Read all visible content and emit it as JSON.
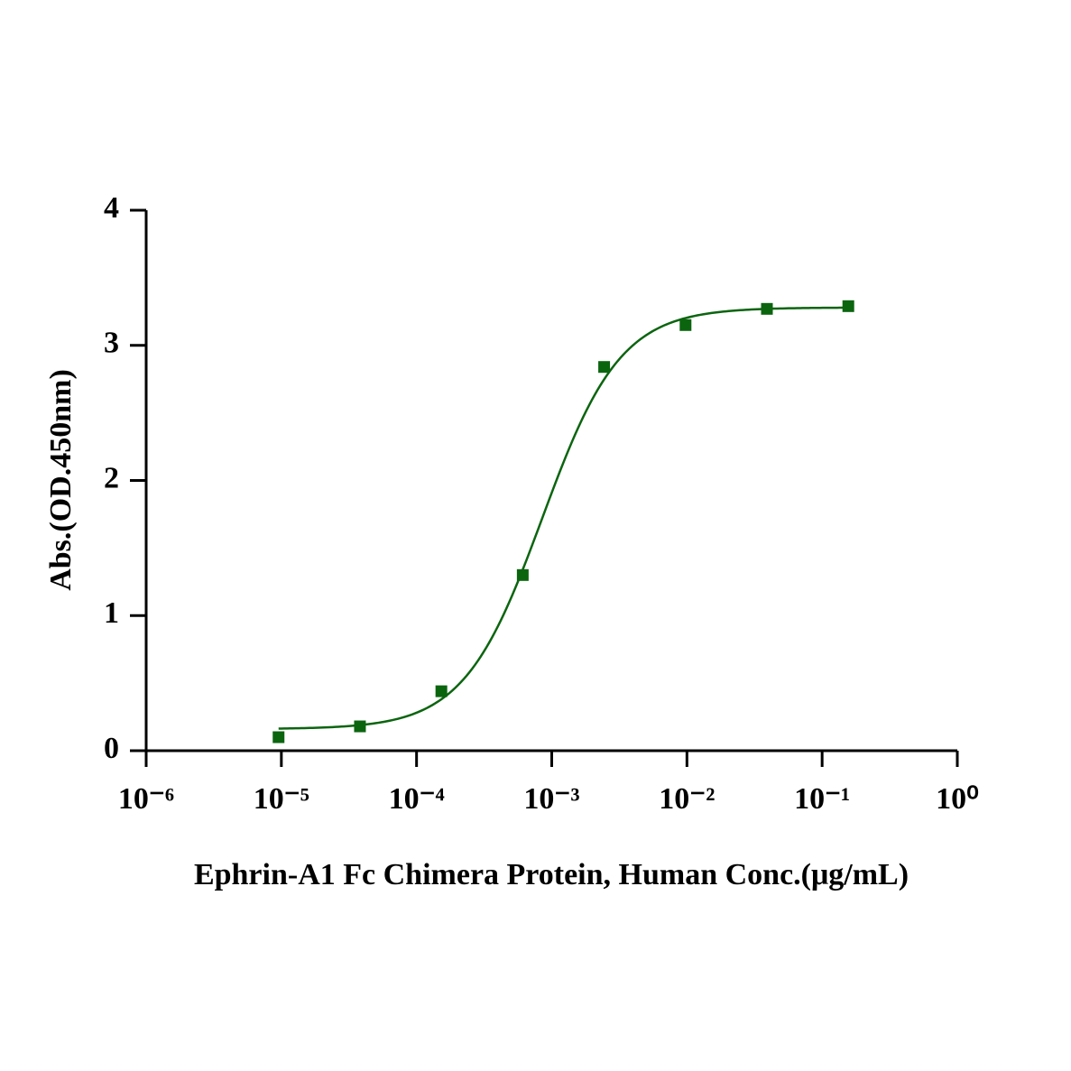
{
  "chart_data": {
    "type": "scatter",
    "x_label": "Ephrin-A1 Fc Chimera Protein, Human  Conc.(μg/mL)",
    "y_label": "Abs.(OD.450nm)",
    "x": [
      9.5367431640625e-06,
      3.814697265625e-05,
      0.000152587890625,
      0.0006103515625,
      0.00244140625,
      0.009765625,
      0.0390625,
      0.15625
    ],
    "values": [
      0.1,
      0.18,
      0.44,
      1.3,
      2.84,
      3.15,
      3.27,
      3.29
    ],
    "color": "#0b650f",
    "fit": {
      "bottom": 0.16,
      "top": 3.28,
      "ec50": 0.00085,
      "hill": 1.5
    },
    "xscale": "log",
    "xlim": [
      1e-06,
      1
    ],
    "xticks": [
      {
        "value": 1e-06,
        "label": "10⁻⁶"
      },
      {
        "value": 1e-05,
        "label": "10⁻⁵"
      },
      {
        "value": 0.0001,
        "label": "10⁻⁴"
      },
      {
        "value": 0.001,
        "label": "10⁻³"
      },
      {
        "value": 0.01,
        "label": "10⁻²"
      },
      {
        "value": 0.1,
        "label": "10⁻¹"
      },
      {
        "value": 1,
        "label": "10⁰"
      }
    ],
    "ylim": [
      0,
      4
    ],
    "yticks": [
      0,
      1,
      2,
      3,
      4
    ]
  }
}
